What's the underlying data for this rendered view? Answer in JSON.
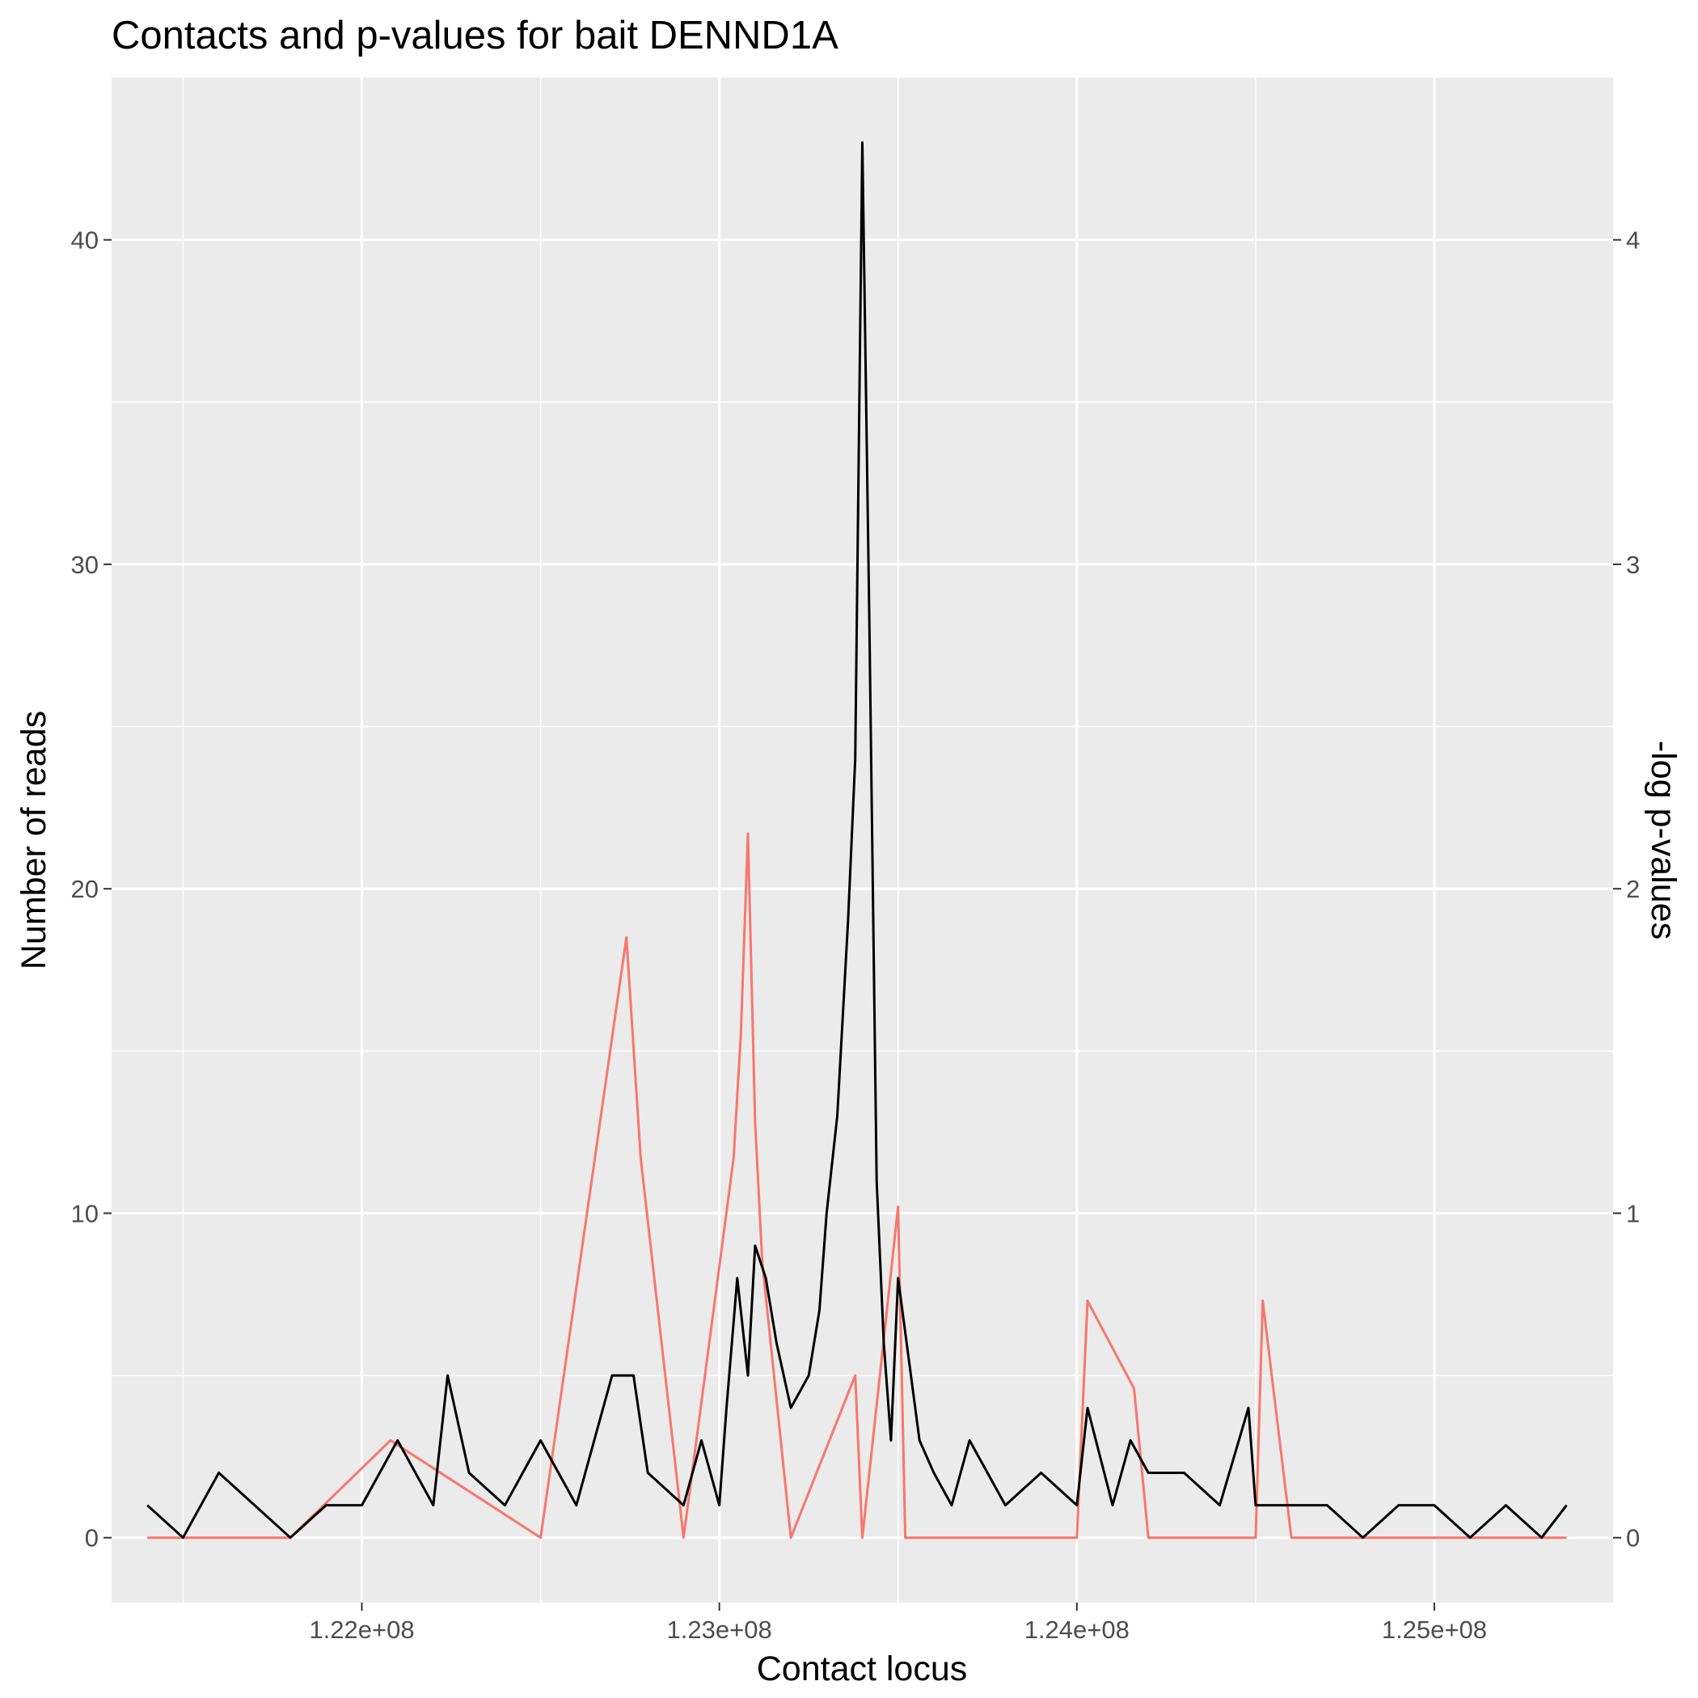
{
  "chart_data": {
    "type": "line",
    "title": "Contacts and p-values for bait DENND1A",
    "xlabel": "Contact locus",
    "ylabel": "Number of reads",
    "y2label": "-log p-values",
    "xlim": [
      121300000,
      125500000
    ],
    "ylim": [
      -2,
      45
    ],
    "y2lim": [
      -0.2,
      4.5
    ],
    "x_ticks": [
      {
        "value": 122000000,
        "label": "1.22e+08"
      },
      {
        "value": 123000000,
        "label": "1.23e+08"
      },
      {
        "value": 124000000,
        "label": "1.24e+08"
      },
      {
        "value": 125000000,
        "label": "1.25e+08"
      }
    ],
    "y_ticks": [
      {
        "value": 0,
        "label": "0"
      },
      {
        "value": 10,
        "label": "10"
      },
      {
        "value": 20,
        "label": "20"
      },
      {
        "value": 30,
        "label": "30"
      },
      {
        "value": 40,
        "label": "40"
      }
    ],
    "y2_ticks": [
      {
        "value": 0,
        "label": "0"
      },
      {
        "value": 1,
        "label": "1"
      },
      {
        "value": 2,
        "label": "2"
      },
      {
        "value": 3,
        "label": "3"
      },
      {
        "value": 4,
        "label": "4"
      }
    ],
    "grid": true,
    "colors": {
      "panel": "#ebebeb",
      "grid": "#ffffff",
      "reads": "#000000",
      "pvalues": "#f8766d"
    },
    "series": [
      {
        "axis": "y",
        "x": [
          121400000,
          121500000,
          121600000,
          121700000,
          121800000,
          121900000,
          122000000,
          122100000,
          122200000,
          122240000,
          122300000,
          122400000,
          122500000,
          122600000,
          122700000,
          122760000,
          122800000,
          122900000,
          122950000,
          123000000,
          123020000,
          123050000,
          123080000,
          123100000,
          123130000,
          123160000,
          123200000,
          123250000,
          123280000,
          123300000,
          123330000,
          123360000,
          123380000,
          123400000,
          123420000,
          123440000,
          123460000,
          123480000,
          123500000,
          123560000,
          123600000,
          123650000,
          123700000,
          123800000,
          123900000,
          124000000,
          124030000,
          124100000,
          124150000,
          124200000,
          124300000,
          124400000,
          124480000,
          124500000,
          124600000,
          124700000,
          124800000,
          124900000,
          125000000,
          125100000,
          125200000,
          125300000,
          125370000
        ],
        "values": [
          1,
          0,
          2,
          1,
          0,
          1,
          1,
          3,
          1,
          5,
          2,
          1,
          3,
          1,
          5,
          5,
          2,
          1,
          3,
          1,
          4,
          8,
          5,
          9,
          8,
          6,
          4,
          5,
          7,
          10,
          13,
          19,
          24,
          43,
          28,
          11,
          6,
          3,
          8,
          3,
          2,
          1,
          3,
          1,
          2,
          1,
          4,
          1,
          3,
          2,
          2,
          1,
          4,
          1,
          1,
          1,
          0,
          1,
          1,
          0,
          1,
          0,
          1
        ]
      },
      {
        "axis": "y2",
        "x": [
          121400000,
          121800000,
          122080000,
          122500000,
          122740000,
          122780000,
          122900000,
          123040000,
          123060000,
          123080000,
          123100000,
          123120000,
          123200000,
          123380000,
          123400000,
          123500000,
          123520000,
          123600000,
          124000000,
          124030000,
          124160000,
          124200000,
          124500000,
          124520000,
          124600000,
          125370000
        ],
        "values": [
          0,
          0,
          0.3,
          0,
          1.85,
          1.17,
          0,
          1.17,
          1.55,
          2.17,
          1.28,
          0.85,
          0,
          0.5,
          0,
          1.02,
          0,
          0,
          0,
          0.73,
          0.46,
          0,
          0,
          0.73,
          0,
          0
        ]
      }
    ]
  }
}
